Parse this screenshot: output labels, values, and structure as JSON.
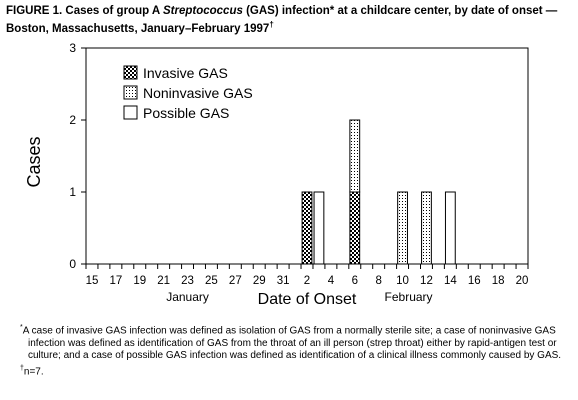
{
  "figure": {
    "title_part1": "FIGURE 1. Cases of group A ",
    "title_italic": "Streptococcus",
    "title_part2": " (GAS) infection",
    "title_mark1": "*",
    "title_part3": " at a childcare center, by date of onset — Boston, Massachusetts,  January–February 1997",
    "title_mark2": "†"
  },
  "chart_data": {
    "type": "bar",
    "stacked": true,
    "x_dates": [
      "Jan 15",
      "Jan 16",
      "Jan 17",
      "Jan 18",
      "Jan 19",
      "Jan 20",
      "Jan 21",
      "Jan 22",
      "Jan 23",
      "Jan 24",
      "Jan 25",
      "Jan 26",
      "Jan 27",
      "Jan 28",
      "Jan 29",
      "Jan 30",
      "Jan 31",
      "Feb 1",
      "Feb 2",
      "Feb 3",
      "Feb 4",
      "Feb 5",
      "Feb 6",
      "Feb 7",
      "Feb 8",
      "Feb 9",
      "Feb 10",
      "Feb 11",
      "Feb 12",
      "Feb 13",
      "Feb 14",
      "Feb 15",
      "Feb 16",
      "Feb 17",
      "Feb 18",
      "Feb 19",
      "Feb 20"
    ],
    "tick_labels": [
      "15",
      "17",
      "19",
      "21",
      "23",
      "25",
      "27",
      "29",
      "31",
      "2",
      "4",
      "6",
      "8",
      "10",
      "12",
      "14",
      "16",
      "18",
      "20"
    ],
    "month_labels": [
      "January",
      "February"
    ],
    "series": [
      {
        "name": "Invasive GAS",
        "pattern": "checker",
        "points": [
          {
            "x": "Feb 2",
            "y": 1
          },
          {
            "x": "Feb 6",
            "y": 1
          }
        ]
      },
      {
        "name": "Noninvasive GAS",
        "pattern": "dots",
        "points": [
          {
            "x": "Feb 6",
            "y": 1
          },
          {
            "x": "Feb 10",
            "y": 1
          },
          {
            "x": "Feb 12",
            "y": 1
          }
        ]
      },
      {
        "name": "Possible GAS",
        "pattern": "blank",
        "points": [
          {
            "x": "Feb 3",
            "y": 1
          },
          {
            "x": "Feb 14",
            "y": 1
          }
        ]
      }
    ],
    "xlabel": "Date of Onset",
    "ylabel": "Cases",
    "ylim": [
      0,
      3
    ],
    "yticks": [
      0,
      1,
      2,
      3
    ],
    "legend_position": "top-left",
    "grid": false
  },
  "footnotes": {
    "mark1": "*",
    "note1": "A case of invasive GAS infection was defined as isolation of GAS from a normally sterile site; a case of noninvasive GAS infection was defined as identification of GAS from the throat of an ill person (strep throat) either by rapid-antigen test or culture; and a case of possible GAS infection was defined as identification of a clinical illness commonly caused by GAS.",
    "mark2": "†",
    "note2": "n=7."
  }
}
